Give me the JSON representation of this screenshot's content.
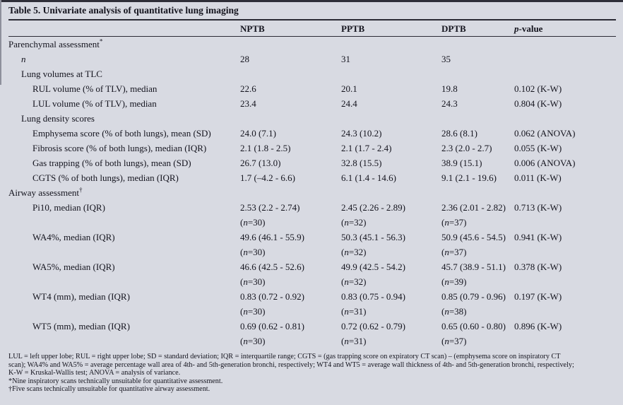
{
  "title": "Table 5. Univariate analysis of quantitative lung imaging",
  "columns": {
    "nptb": "NPTB",
    "pptb": "PPTB",
    "dptb": "DPTB",
    "p_italic": "p",
    "p_rest": "-value"
  },
  "rows": [
    {
      "type": "section",
      "indent": 0,
      "label": "Parenchymal assessment",
      "sup": "*",
      "cells": [
        "",
        "",
        "",
        ""
      ]
    },
    {
      "type": "data",
      "indent": 1,
      "label": "n",
      "label_italic": true,
      "cells": [
        "28",
        "31",
        "35",
        ""
      ]
    },
    {
      "type": "section",
      "indent": 1,
      "label": "Lung volumes at TLC",
      "cells": [
        "",
        "",
        "",
        ""
      ]
    },
    {
      "type": "data",
      "indent": 2,
      "label": "RUL volume (% of TLV), median",
      "cells": [
        "22.6",
        "20.1",
        "19.8",
        "0.102 (K-W)"
      ]
    },
    {
      "type": "data",
      "indent": 2,
      "label": "LUL volume (% of TLV), median",
      "cells": [
        "23.4",
        "24.4",
        "24.3",
        "0.804 (K-W)"
      ]
    },
    {
      "type": "section",
      "indent": 1,
      "label": "Lung density scores",
      "cells": [
        "",
        "",
        "",
        ""
      ]
    },
    {
      "type": "data",
      "indent": 2,
      "label": "Emphysema score (% of both lungs), mean (SD)",
      "cells": [
        "24.0 (7.1)",
        "24.3 (10.2)",
        "28.6 (8.1)",
        "0.062 (ANOVA)"
      ]
    },
    {
      "type": "data",
      "indent": 2,
      "label": "Fibrosis score (% of both lungs), median (IQR)",
      "cells": [
        "2.1 (1.8 - 2.5)",
        "2.1 (1.7 - 2.4)",
        "2.3 (2.0 - 2.7)",
        "0.055 (K-W)"
      ]
    },
    {
      "type": "data",
      "indent": 2,
      "label": "Gas trapping (% of both lungs), mean (SD)",
      "cells": [
        "26.7 (13.0)",
        "32.8 (15.5)",
        "38.9 (15.1)",
        "0.006 (ANOVA)"
      ]
    },
    {
      "type": "data",
      "indent": 2,
      "label": "CGTS (% of both lungs), median (IQR)",
      "cells": [
        "1.7 (–4.2 - 6.6)",
        "6.1 (1.4 - 14.6)",
        "9.1 (2.1 - 19.6)",
        "0.011 (K-W)"
      ]
    },
    {
      "type": "section",
      "indent": 0,
      "label": "Airway assessment",
      "sup": "†",
      "cells": [
        "",
        "",
        "",
        ""
      ]
    },
    {
      "type": "data",
      "indent": 2,
      "label": "Pi10, median (IQR)",
      "cells": [
        "2.53 (2.2 - 2.74)",
        "2.45 (2.26 - 2.89)",
        "2.36 (2.01 - 2.82)",
        "0.713 (K-W)"
      ],
      "n": [
        "(n=30)",
        "(n=32)",
        "(n=37)",
        ""
      ]
    },
    {
      "type": "data",
      "indent": 2,
      "label": "WA4%, median (IQR)",
      "cells": [
        "49.6 (46.1 - 55.9)",
        "50.3 (45.1 - 56.3)",
        "50.9 (45.6 - 54.5)",
        "0.941 (K-W)"
      ],
      "n": [
        "(n=30)",
        "(n=32)",
        "(n=37)",
        ""
      ]
    },
    {
      "type": "data",
      "indent": 2,
      "label": "WA5%, median (IQR)",
      "cells": [
        "46.6 (42.5 - 52.6)",
        "49.9 (42.5 - 54.2)",
        "45.7 (38.9 - 51.1)",
        "0.378 (K-W)"
      ],
      "n": [
        "(n=30)",
        "(n=32)",
        "(n=39)",
        ""
      ]
    },
    {
      "type": "data",
      "indent": 2,
      "label": "WT4 (mm), median (IQR)",
      "cells": [
        "0.83 (0.72 - 0.92)",
        "0.83 (0.75 - 0.94)",
        "0.85 (0.79 - 0.96)",
        "0.197 (K-W)"
      ],
      "n": [
        "(n=30)",
        "(n=31)",
        "(n=38)",
        ""
      ]
    },
    {
      "type": "data",
      "indent": 2,
      "label": "WT5 (mm), median (IQR)",
      "cells": [
        "0.69 (0.62 - 0.81)",
        "0.72 (0.62 - 0.79)",
        "0.65 (0.60 - 0.80)",
        "0.896 (K-W)"
      ],
      "n": [
        "(n=30)",
        "(n=31)",
        "(n=37)",
        ""
      ]
    }
  ],
  "footnotes": {
    "lines": [
      "LUL = left upper lobe; RUL = right upper lobe; SD = standard deviation; IQR = interquartile range; CGTS = (gas trapping score on expiratory CT scan) – (emphysema score on inspiratory CT",
      "scan); WA4% and WA5% = average percentage wall area of 4th- and 5th-generation bronchi, respectively; WT4 and WT5 = average wall thickness of 4th- and 5th-generation bronchi, respectively;",
      "K-W = Kruskal-Wallis test; ANOVA = analysis of variance.",
      "*Nine inspiratory scans technically unsuitable for quantitative assessment.",
      "†Five scans technically unsuitable for quantitative airway assessment."
    ]
  },
  "colors": {
    "background": "#d8dae2",
    "text": "#14141e",
    "rule": "#2b2b35"
  }
}
